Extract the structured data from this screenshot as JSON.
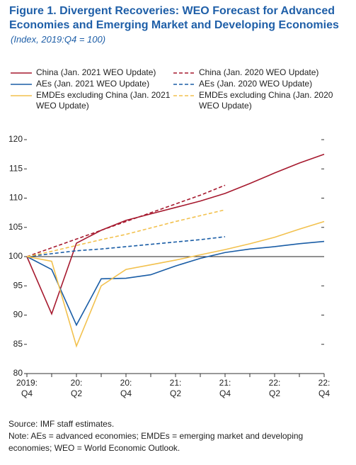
{
  "chart_data": {
    "type": "line",
    "title": "Figure 1.  Divergent Recoveries: WEO Forecast for Advanced Economies and Emerging Market and Developing Economies",
    "subtitle": "(Index, 2019:Q4 = 100)",
    "categories": [
      "2019:\nQ4",
      null,
      "20:\nQ2",
      null,
      "20:\nQ4",
      null,
      "21:\nQ2",
      null,
      "21:\nQ4",
      null,
      "22:\nQ2",
      null,
      "22:\nQ4"
    ],
    "series": [
      {
        "name": "China (Jan. 2021 WEO Update)",
        "color": "#a6192e",
        "style": "solid",
        "values": [
          100,
          90.2,
          102.3,
          104.5,
          106.2,
          107.3,
          108.4,
          109.5,
          110.8,
          112.5,
          114.3,
          116,
          117.5
        ]
      },
      {
        "name": "China (Jan. 2020 WEO Update)",
        "color": "#a6192e",
        "style": "dashed",
        "values": [
          100,
          101.5,
          103,
          104.5,
          106,
          107.5,
          109,
          110.5,
          112.2,
          null,
          null,
          null,
          null
        ]
      },
      {
        "name": "AEs (Jan. 2021 WEO Update)",
        "color": "#1a5da6",
        "style": "solid",
        "values": [
          100,
          97.8,
          88.3,
          96.2,
          96.3,
          96.9,
          98.4,
          99.7,
          100.7,
          101.3,
          101.7,
          102.2,
          102.6
        ]
      },
      {
        "name": "AEs (Jan. 2020 WEO Update)",
        "color": "#1a5da6",
        "style": "dashed",
        "values": [
          100,
          100.5,
          101,
          101.3,
          101.7,
          102.1,
          102.5,
          102.9,
          103.4,
          null,
          null,
          null,
          null
        ]
      },
      {
        "name": "EMDEs excluding China (Jan. 2021 WEO Update)",
        "color": "#f2c14e",
        "style": "solid",
        "values": [
          100,
          99.2,
          84.7,
          95,
          97.8,
          98.6,
          99.4,
          100.3,
          101.2,
          102.2,
          103.3,
          104.7,
          106
        ]
      },
      {
        "name": "EMDEs excluding China (Jan. 2020 WEO Update)",
        "color": "#f2c14e",
        "style": "dashed",
        "values": [
          100,
          100.9,
          101.9,
          102.9,
          103.8,
          104.9,
          106,
          107,
          108,
          null,
          null,
          null,
          null
        ]
      }
    ],
    "ylim": [
      80,
      120
    ],
    "yticks": [
      80,
      85,
      90,
      95,
      100,
      105,
      110,
      115,
      120
    ],
    "reference_line": 100,
    "source": "Source: IMF staff estimates.",
    "note": "Note: AEs = advanced economies; EMDEs = emerging market and developing economies; WEO = World Economic Outlook."
  }
}
